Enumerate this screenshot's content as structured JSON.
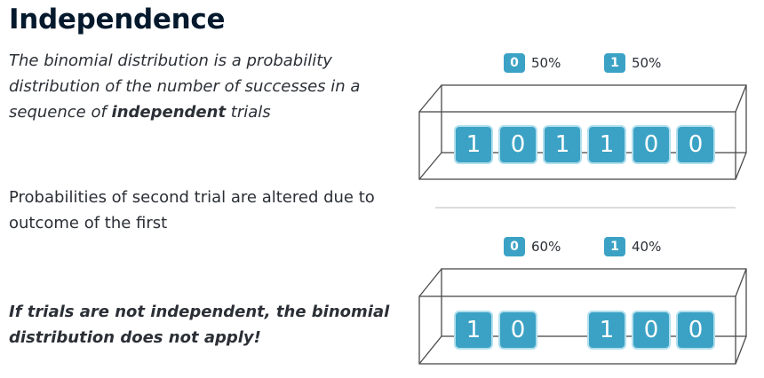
{
  "title": "Independence",
  "intro": {
    "text_before": "The binomial distribution is a probability distribution of the number of successes in a sequence of ",
    "emphasis": "independent",
    "text_after": " trials"
  },
  "dependence_note": "Probabilities of second trial are altered due to outcome of the first",
  "warning": "If trials are not independent, the binomial distribution does not apply!",
  "independent_scenario": {
    "legend": [
      {
        "outcome": "0",
        "probability": "50%"
      },
      {
        "outcome": "1",
        "probability": "50%"
      }
    ],
    "trials": [
      "1",
      "0",
      "1",
      "1",
      "0",
      "0"
    ]
  },
  "dependent_scenario": {
    "legend": [
      {
        "outcome": "0",
        "probability": "60%"
      },
      {
        "outcome": "1",
        "probability": "40%"
      }
    ],
    "trials": [
      "1",
      "0",
      "",
      "1",
      "0",
      "0"
    ]
  },
  "colors": {
    "tile": "#3ba2c5",
    "tile_border": "#b2dfed",
    "box_line": "#4a4a4a"
  }
}
